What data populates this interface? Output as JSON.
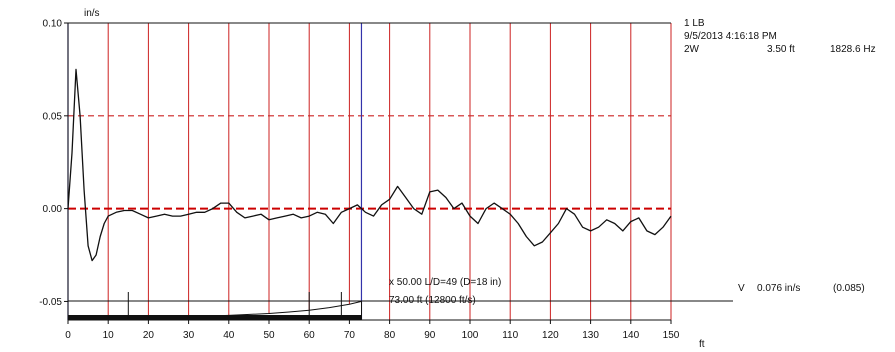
{
  "colors": {
    "grid_red": "#cc2222",
    "marker_blue": "#3333aa",
    "trace": "#111111",
    "baseline_red": "#cc0000"
  },
  "header": {
    "line1": "1 LB",
    "line2": "9/5/2013 4:16:18 PM",
    "line3_name": "2W",
    "line3_depth": "3.50 ft",
    "line3_freq": "1828.6 Hz"
  },
  "annotation": {
    "line1": "x 50.00  L/D=49 (D=18 in)",
    "line2": "73.00 ft (12800 ft/s)"
  },
  "velocity_readout": {
    "label": "V",
    "value": "0.076 in/s",
    "paren": "(0.085)"
  },
  "chart_data": {
    "type": "line",
    "title": "",
    "xlabel": "ft",
    "ylabel": "in/s",
    "xlim": [
      0,
      150
    ],
    "ylim": [
      -0.06,
      0.1
    ],
    "x_ticks": [
      "0",
      "10",
      "20",
      "30",
      "40",
      "50",
      "60",
      "70",
      "80",
      "90",
      "100",
      "110",
      "120",
      "130",
      "140",
      "150"
    ],
    "y_ticks": [
      "0.10",
      "0.05",
      "0.00",
      "-0.05"
    ],
    "y_tick_values": [
      0.1,
      0.05,
      0.0,
      -0.05
    ],
    "dashed_y_levels": [
      0.05,
      0.0
    ],
    "vertical_markers_ft": [
      0,
      73
    ],
    "grid_x_ft": [
      10,
      20,
      30,
      40,
      50,
      60,
      70,
      80,
      90,
      100,
      110,
      120,
      130,
      140,
      150
    ],
    "amplification": "x 50.00",
    "series": [
      {
        "x": [
          0,
          1,
          2,
          3,
          4,
          5,
          6,
          7,
          8,
          9,
          10,
          12,
          14,
          16,
          18,
          20,
          22,
          24,
          26,
          28,
          30,
          32,
          34,
          36,
          38,
          40,
          42,
          44,
          46,
          48,
          50,
          52,
          54,
          56,
          58,
          60,
          62,
          64,
          66,
          68,
          70,
          72,
          74,
          76,
          78,
          80,
          82,
          84,
          86,
          88,
          90,
          92,
          94,
          96,
          98,
          100,
          102,
          104,
          106,
          108,
          110,
          112,
          114,
          116,
          118,
          120,
          122,
          124,
          126,
          128,
          130,
          132,
          134,
          136,
          138,
          140,
          142,
          144,
          146,
          148,
          150
        ],
        "y": [
          0.0,
          0.03,
          0.075,
          0.05,
          0.01,
          -0.02,
          -0.028,
          -0.025,
          -0.015,
          -0.008,
          -0.004,
          -0.002,
          -0.001,
          -0.001,
          -0.003,
          -0.005,
          -0.004,
          -0.003,
          -0.004,
          -0.004,
          -0.003,
          -0.002,
          -0.002,
          0.0,
          0.003,
          0.003,
          -0.002,
          -0.005,
          -0.004,
          -0.003,
          -0.006,
          -0.005,
          -0.004,
          -0.003,
          -0.005,
          -0.004,
          -0.002,
          -0.003,
          -0.008,
          -0.002,
          0.0,
          0.002,
          -0.002,
          -0.004,
          0.002,
          0.005,
          0.012,
          0.006,
          0.0,
          -0.003,
          0.009,
          0.01,
          0.006,
          0.0,
          0.003,
          -0.004,
          -0.008,
          0.0,
          0.003,
          0.0,
          -0.003,
          -0.008,
          -0.015,
          -0.02,
          -0.018,
          -0.013,
          -0.008,
          0.0,
          -0.003,
          -0.01,
          -0.012,
          -0.01,
          -0.006,
          -0.008,
          -0.012,
          -0.007,
          -0.005,
          -0.012,
          -0.014,
          -0.01,
          -0.004
        ]
      }
    ],
    "window_curve": {
      "x": [
        0,
        10,
        20,
        30,
        40,
        50,
        55,
        60,
        65,
        70,
        73
      ],
      "y": [
        -0.0595,
        -0.0592,
        -0.0588,
        -0.0582,
        -0.0575,
        -0.0565,
        -0.0557,
        -0.0547,
        -0.0533,
        -0.0515,
        -0.05
      ]
    }
  }
}
